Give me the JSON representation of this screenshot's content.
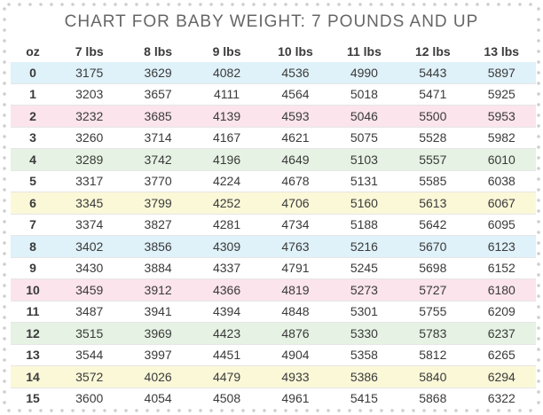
{
  "title": "CHART FOR BABY WEIGHT: 7 POUNDS AND UP",
  "band_colors": [
    "#dff1f9",
    "#ffffff",
    "#fbe4ec",
    "#ffffff",
    "#e6f2e3",
    "#ffffff",
    "#fbf8d8",
    "#ffffff"
  ],
  "chart_data": {
    "type": "table",
    "title": "CHART FOR BABY WEIGHT: 7 POUNDS AND UP",
    "columns": [
      "oz",
      "7 lbs",
      "8 lbs",
      "9 lbs",
      "10 lbs",
      "11 lbs",
      "12 lbs",
      "13 lbs"
    ],
    "rows": [
      [
        "0",
        "3175",
        "3629",
        "4082",
        "4536",
        "4990",
        "5443",
        "5897"
      ],
      [
        "1",
        "3203",
        "3657",
        "4111",
        "4564",
        "5018",
        "5471",
        "5925"
      ],
      [
        "2",
        "3232",
        "3685",
        "4139",
        "4593",
        "5046",
        "5500",
        "5953"
      ],
      [
        "3",
        "3260",
        "3714",
        "4167",
        "4621",
        "5075",
        "5528",
        "5982"
      ],
      [
        "4",
        "3289",
        "3742",
        "4196",
        "4649",
        "5103",
        "5557",
        "6010"
      ],
      [
        "5",
        "3317",
        "3770",
        "4224",
        "4678",
        "5131",
        "5585",
        "6038"
      ],
      [
        "6",
        "3345",
        "3799",
        "4252",
        "4706",
        "5160",
        "5613",
        "6067"
      ],
      [
        "7",
        "3374",
        "3827",
        "4281",
        "4734",
        "5188",
        "5642",
        "6095"
      ],
      [
        "8",
        "3402",
        "3856",
        "4309",
        "4763",
        "5216",
        "5670",
        "6123"
      ],
      [
        "9",
        "3430",
        "3884",
        "4337",
        "4791",
        "5245",
        "5698",
        "6152"
      ],
      [
        "10",
        "3459",
        "3912",
        "4366",
        "4819",
        "5273",
        "5727",
        "6180"
      ],
      [
        "11",
        "3487",
        "3941",
        "4394",
        "4848",
        "5301",
        "5755",
        "6209"
      ],
      [
        "12",
        "3515",
        "3969",
        "4423",
        "4876",
        "5330",
        "5783",
        "6237"
      ],
      [
        "13",
        "3544",
        "3997",
        "4451",
        "4904",
        "5358",
        "5812",
        "6265"
      ],
      [
        "14",
        "3572",
        "4026",
        "4479",
        "4933",
        "5386",
        "5840",
        "6294"
      ],
      [
        "15",
        "3600",
        "4054",
        "4508",
        "4961",
        "5415",
        "5868",
        "6322"
      ]
    ]
  }
}
